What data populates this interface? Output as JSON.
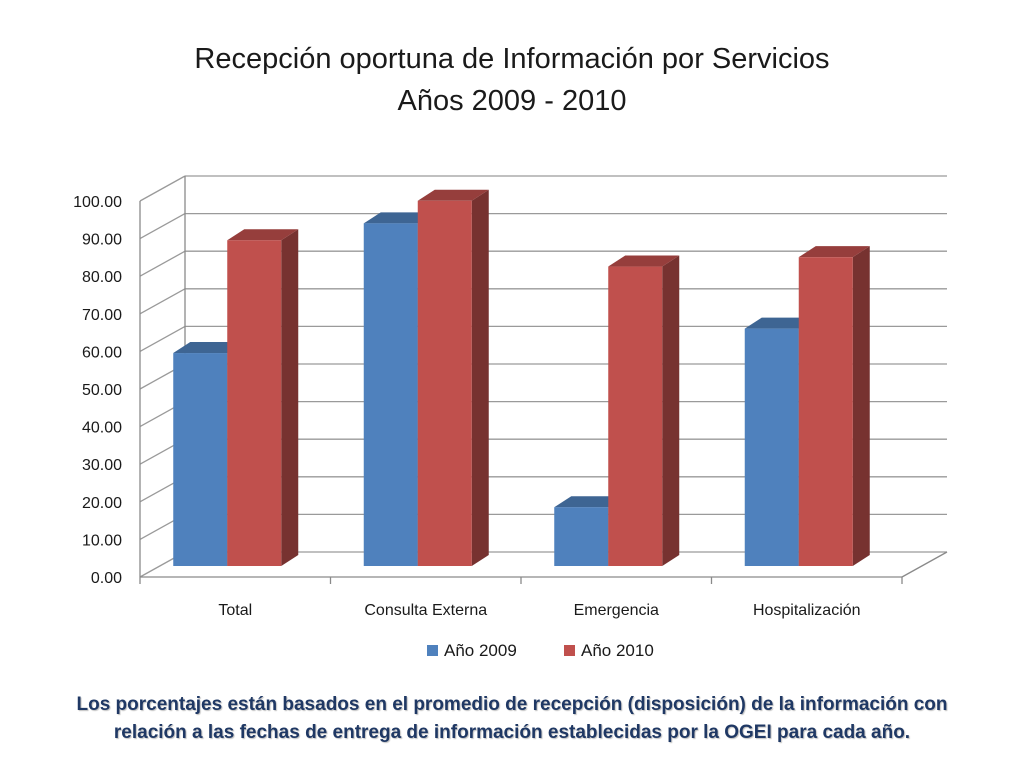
{
  "title": {
    "line1": "Recepción oportuna de Información por Servicios",
    "line2": "Años 2009 - 2010"
  },
  "caption": "Los porcentajes están basados en el promedio de recepción (disposición) de la información con relación a las fechas de entrega de información establecidas por la OGEI para cada año.",
  "chart_data": {
    "type": "bar",
    "style": "3d-clustered-column",
    "categories": [
      "Total",
      "Consulta Externa",
      "Emergencia",
      "Hospitalización"
    ],
    "series": [
      {
        "name": "Año 2009",
        "values": [
          58.5,
          93.0,
          17.5,
          65.0
        ],
        "color": "#4f81bd"
      },
      {
        "name": "Año 2010",
        "values": [
          88.5,
          99.0,
          81.5,
          84.0
        ],
        "color": "#c0504d"
      }
    ],
    "ylim": [
      0,
      100
    ],
    "ytick_step": 10,
    "ytick_labels": [
      "0.00",
      "10.00",
      "20.00",
      "30.00",
      "40.00",
      "50.00",
      "60.00",
      "70.00",
      "80.00",
      "90.00",
      "100.00"
    ],
    "grid": true,
    "legend_position": "bottom"
  }
}
